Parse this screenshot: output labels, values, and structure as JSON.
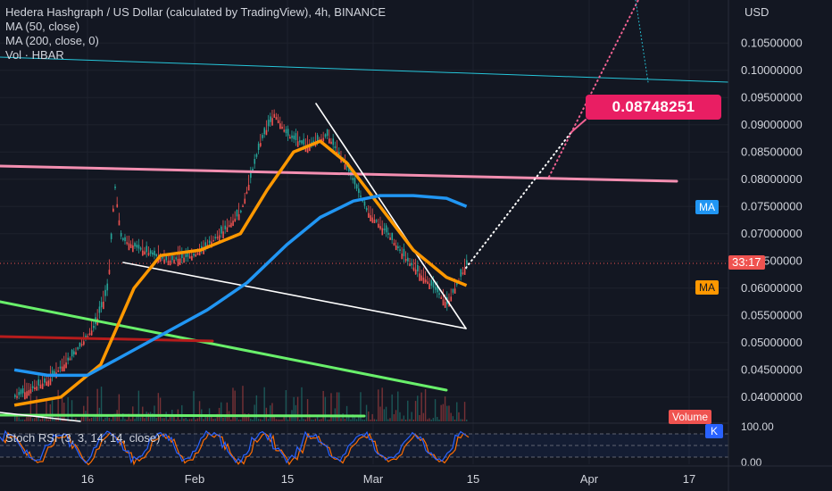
{
  "chart_data": {
    "type": "line",
    "title": "Hedera Hashgraph / US Dollar (calculated by TradingView), 4h, BINANCE",
    "legend": [
      "MA (50, close)",
      "MA (200, close, 0)",
      "Vol · HBAR"
    ],
    "currency": "USD",
    "y_ticks": [
      "0.10500000",
      "0.10000000",
      "0.09500000",
      "0.09000000",
      "0.08500000",
      "0.08000000",
      "0.07500000",
      "0.07000000",
      "0.06500000",
      "0.06000000",
      "0.05500000",
      "0.05000000",
      "0.04500000",
      "0.04000000"
    ],
    "x_ticks": [
      "16",
      "Feb",
      "15",
      "Mar",
      "15",
      "Apr",
      "17"
    ],
    "ylim": [
      0.0375,
      0.108
    ],
    "price_path": [
      {
        "t": "Jan 5",
        "p": 0.04
      },
      {
        "t": "Jan 10",
        "p": 0.043
      },
      {
        "t": "Jan 14",
        "p": 0.048
      },
      {
        "t": "Jan 17",
        "p": 0.053
      },
      {
        "t": "Jan 19",
        "p": 0.06
      },
      {
        "t": "Jan 20",
        "p": 0.079
      },
      {
        "t": "Jan 21",
        "p": 0.069
      },
      {
        "t": "Jan 24",
        "p": 0.067
      },
      {
        "t": "Jan 28",
        "p": 0.065
      },
      {
        "t": "Feb 1",
        "p": 0.066
      },
      {
        "t": "Feb 5",
        "p": 0.07
      },
      {
        "t": "Feb 8",
        "p": 0.074
      },
      {
        "t": "Feb 11",
        "p": 0.087
      },
      {
        "t": "Feb 13",
        "p": 0.092
      },
      {
        "t": "Feb 15",
        "p": 0.088
      },
      {
        "t": "Feb 18",
        "p": 0.086
      },
      {
        "t": "Feb 21",
        "p": 0.088
      },
      {
        "t": "Feb 24",
        "p": 0.082
      },
      {
        "t": "Feb 27",
        "p": 0.074
      },
      {
        "t": "Mar 2",
        "p": 0.07
      },
      {
        "t": "Mar 5",
        "p": 0.065
      },
      {
        "t": "Mar 9",
        "p": 0.06
      },
      {
        "t": "Mar 11",
        "p": 0.057
      },
      {
        "t": "Mar 13",
        "p": 0.062
      },
      {
        "t": "Mar 14",
        "p": 0.0645
      }
    ],
    "series": [
      {
        "name": "MA (50, close)",
        "color": "#ff9800",
        "values": [
          {
            "t": "Jan 5",
            "p": 0.0385
          },
          {
            "t": "Jan 12",
            "p": 0.04
          },
          {
            "t": "Jan 18",
            "p": 0.046
          },
          {
            "t": "Jan 23",
            "p": 0.06
          },
          {
            "t": "Jan 27",
            "p": 0.066
          },
          {
            "t": "Feb 2",
            "p": 0.067
          },
          {
            "t": "Feb 8",
            "p": 0.07
          },
          {
            "t": "Feb 12",
            "p": 0.078
          },
          {
            "t": "Feb 16",
            "p": 0.085
          },
          {
            "t": "Feb 20",
            "p": 0.087
          },
          {
            "t": "Feb 24",
            "p": 0.083
          },
          {
            "t": "Mar 1",
            "p": 0.075
          },
          {
            "t": "Mar 6",
            "p": 0.067
          },
          {
            "t": "Mar 11",
            "p": 0.062
          },
          {
            "t": "Mar 14",
            "p": 0.0605
          }
        ]
      },
      {
        "name": "MA (200, close, 0)",
        "color": "#2196f3",
        "values": [
          {
            "t": "Jan 5",
            "p": 0.045
          },
          {
            "t": "Jan 10",
            "p": 0.044
          },
          {
            "t": "Jan 16",
            "p": 0.044
          },
          {
            "t": "Jan 22",
            "p": 0.048
          },
          {
            "t": "Jan 28",
            "p": 0.052
          },
          {
            "t": "Feb 3",
            "p": 0.056
          },
          {
            "t": "Feb 9",
            "p": 0.061
          },
          {
            "t": "Feb 15",
            "p": 0.068
          },
          {
            "t": "Feb 20",
            "p": 0.073
          },
          {
            "t": "Feb 25",
            "p": 0.076
          },
          {
            "t": "Mar 1",
            "p": 0.077
          },
          {
            "t": "Mar 6",
            "p": 0.077
          },
          {
            "t": "Mar 11",
            "p": 0.0765
          },
          {
            "t": "Mar 14",
            "p": 0.075
          }
        ]
      }
    ],
    "price_label": "33:17",
    "ma_tags": [
      "MA",
      "MA"
    ],
    "projection_target": "0.08748251",
    "volume_label": "Volume",
    "stoch_rsi": {
      "title": "Stoch RSI (3, 3, 14, 14, close)",
      "ticks": [
        "100.00",
        "0.00"
      ],
      "k_tag": "K"
    },
    "colors": {
      "background": "#131722",
      "ma50": "#ff9800",
      "ma200": "#2196f3",
      "resistance": "#f48fb1",
      "support_green": "#69f06b",
      "red_line": "#b71c1c",
      "cyan_line": "#26c6da",
      "projection": "#f06292",
      "callout": "#e91e63"
    }
  }
}
